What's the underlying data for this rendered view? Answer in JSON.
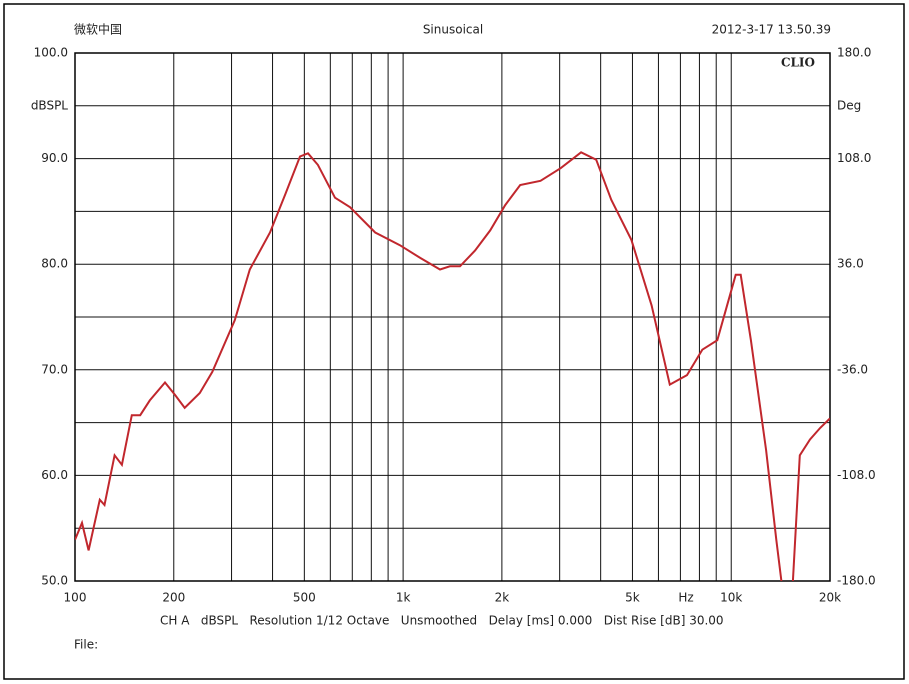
{
  "chart_data": {
    "type": "line",
    "title": "Sinusoical",
    "header_left": "微软中国",
    "timestamp": "2012-3-17 13.50.39",
    "brand": "CLIO",
    "ylabel": "dBSPL",
    "y2label": "Deg",
    "x_unit": "Hz",
    "footer": "CH A   dBSPL   Resolution 1/12 Octave   Unsmoothed   Delay [ms] 0.000   Dist Rise [dB] 30.00",
    "file_label": "File:",
    "xscale": "log",
    "xlim": [
      100,
      20000
    ],
    "ylim": [
      50,
      100
    ],
    "y2lim": [
      -180,
      180
    ],
    "xticks": [
      100,
      200,
      500,
      {
        "value": 1000,
        "label": "1k"
      },
      {
        "value": 2000,
        "label": "2k"
      },
      {
        "value": 5000,
        "label": "5k"
      },
      {
        "value": 10000,
        "label": "10k"
      },
      {
        "value": 20000,
        "label": "20k"
      }
    ],
    "xgrid": [
      100,
      200,
      300,
      400,
      500,
      600,
      700,
      800,
      900,
      1000,
      2000,
      3000,
      4000,
      5000,
      6000,
      7000,
      8000,
      9000,
      10000,
      20000
    ],
    "yticks": [
      {
        "value": 50,
        "label": "50.0"
      },
      {
        "value": 60,
        "label": "60.0"
      },
      {
        "value": 70,
        "label": "70.0"
      },
      {
        "value": 80,
        "label": "80.0"
      },
      {
        "value": 90,
        "label": "90.0"
      },
      {
        "value": 100,
        "label": "100.0"
      }
    ],
    "ygrid": [
      50,
      55,
      60,
      65,
      70,
      75,
      80,
      85,
      90,
      95,
      100
    ],
    "y2ticks": [
      {
        "value": -180,
        "label": "-180.0"
      },
      {
        "value": -108,
        "label": "-108.0"
      },
      {
        "value": -36,
        "label": "-36.0"
      },
      {
        "value": 36,
        "label": "36.0"
      },
      {
        "value": 108,
        "label": "108.0"
      },
      {
        "value": 180,
        "label": "180.0"
      }
    ],
    "grid": true,
    "x": [
      100,
      105,
      110,
      119,
      123,
      132,
      139,
      149,
      158,
      169,
      188,
      202,
      216,
      240,
      262,
      307,
      341,
      393,
      437,
      485,
      513,
      550,
      620,
      689,
      822,
      978,
      1127,
      1295,
      1389,
      1491,
      1657,
      1842,
      2047,
      2275,
      2623,
      3025,
      3487,
      3876,
      4310,
      4962,
      5720,
      6498,
      7330,
      8160,
      9070,
      10320,
      10690,
      11480,
      12770,
      13720,
      14220,
      14800,
      15420,
      16180,
      17380,
      18670,
      20000
    ],
    "series": [
      {
        "name": "dBSPL",
        "color": "#c1272d",
        "values": [
          53.9,
          55.5,
          52.9,
          57.7,
          57.2,
          61.9,
          61,
          65.7,
          65.7,
          67.1,
          68.8,
          67.6,
          66.4,
          67.8,
          69.8,
          74.7,
          79.5,
          83,
          86.6,
          90.2,
          90.5,
          89.4,
          86.3,
          85.4,
          83,
          81.8,
          80.6,
          79.5,
          79.8,
          79.8,
          81.3,
          83.2,
          85.6,
          87.5,
          87.9,
          89.1,
          90.6,
          89.9,
          86.1,
          82.3,
          76.1,
          68.6,
          69.5,
          71.9,
          72.8,
          79,
          79,
          72.8,
          62.4,
          53.9,
          50,
          null,
          50,
          61.9,
          63.4,
          64.5,
          65.4
        ]
      }
    ]
  }
}
